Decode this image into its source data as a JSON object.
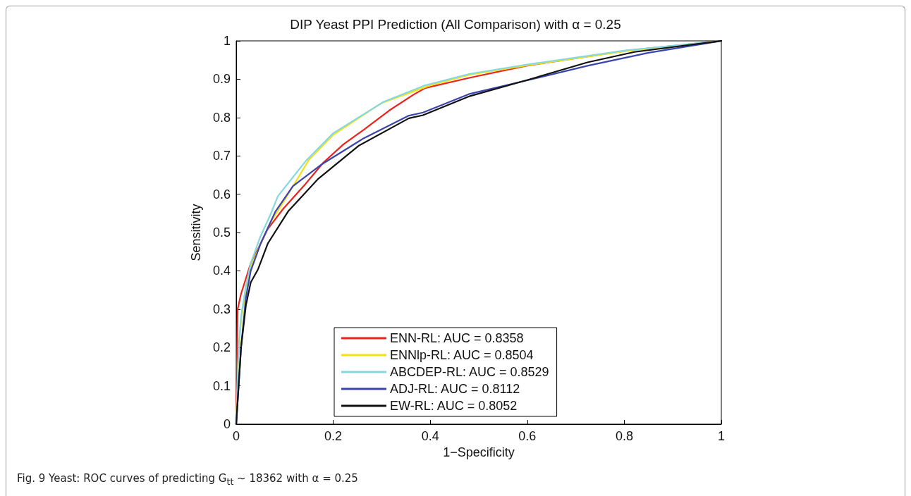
{
  "chart_data": {
    "type": "line",
    "title": "DIP Yeast PPI Prediction (All Comparison) with α = 0.25",
    "xlabel": "1−Specificity",
    "ylabel": "Sensitivity",
    "annotations": [
      "Fig. 9 Yeast: ROC curves of predicting G$_{tt}$ ∼ 18362 with α = 0.25"
    ],
    "xlim": [
      0,
      1
    ],
    "ylim": [
      0,
      1
    ],
    "xticks": [
      0,
      0.2,
      0.4,
      0.6,
      0.8,
      1
    ],
    "yticks": [
      0,
      0.1,
      0.2,
      0.3,
      0.4,
      0.5,
      0.6,
      0.7,
      0.8,
      0.9,
      1
    ],
    "grid": false,
    "legend": "bottom",
    "marker": "none",
    "line_style": "solid",
    "series": [
      {
        "name": "ENN-RL: AUC = 0.8358",
        "color": "#e8241c",
        "x": [
          0,
          0.003,
          0.01,
          0.02,
          0.03,
          0.05,
          0.065,
          0.097,
          0.143,
          0.18,
          0.221,
          0.263,
          0.315,
          0.366,
          0.39,
          0.482,
          0.598,
          0.802,
          1
        ],
        "values": [
          0,
          0.3,
          0.34,
          0.38,
          0.42,
          0.47,
          0.509,
          0.562,
          0.627,
          0.683,
          0.73,
          0.768,
          0.818,
          0.86,
          0.877,
          0.904,
          0.935,
          0.974,
          1
        ]
      },
      {
        "name": "ENNlp-RL: AUC = 0.8504",
        "color": "#f2e20e",
        "x": [
          0,
          0.005,
          0.01,
          0.02,
          0.03,
          0.05,
          0.07,
          0.1,
          0.15,
          0.2,
          0.3,
          0.4,
          0.482,
          0.598,
          0.802,
          1
        ],
        "values": [
          0,
          0.19,
          0.27,
          0.35,
          0.41,
          0.47,
          0.525,
          0.585,
          0.69,
          0.755,
          0.838,
          0.884,
          0.912,
          0.936,
          0.973,
          1
        ]
      },
      {
        "name": "ABCDEP-RL: AUC = 0.8529",
        "color": "#85d8e0",
        "x": [
          0,
          0.005,
          0.01,
          0.02,
          0.03,
          0.05,
          0.07,
          0.086,
          0.143,
          0.2,
          0.304,
          0.387,
          0.482,
          0.598,
          0.802,
          1
        ],
        "values": [
          0,
          0.2,
          0.28,
          0.36,
          0.42,
          0.49,
          0.545,
          0.595,
          0.686,
          0.759,
          0.841,
          0.883,
          0.914,
          0.938,
          0.975,
          1
        ]
      },
      {
        "name": "ADJ-RL: AUC = 0.8112",
        "color": "#3b45b0",
        "x": [
          0,
          0.005,
          0.01,
          0.02,
          0.03,
          0.05,
          0.081,
          0.117,
          0.174,
          0.263,
          0.356,
          0.385,
          0.482,
          0.603,
          0.724,
          0.85,
          1
        ],
        "values": [
          0,
          0.1,
          0.2,
          0.33,
          0.4,
          0.47,
          0.555,
          0.621,
          0.676,
          0.746,
          0.805,
          0.813,
          0.862,
          0.898,
          0.935,
          0.969,
          1
        ]
      },
      {
        "name": "EW-RL: AUC = 0.8052",
        "color": "#111111",
        "x": [
          0,
          0.005,
          0.01,
          0.02,
          0.03,
          0.045,
          0.065,
          0.107,
          0.169,
          0.252,
          0.356,
          0.385,
          0.482,
          0.603,
          0.724,
          0.821,
          1
        ],
        "values": [
          0,
          0.1,
          0.2,
          0.31,
          0.37,
          0.404,
          0.471,
          0.555,
          0.64,
          0.726,
          0.798,
          0.806,
          0.856,
          0.899,
          0.944,
          0.971,
          1
        ]
      }
    ]
  }
}
